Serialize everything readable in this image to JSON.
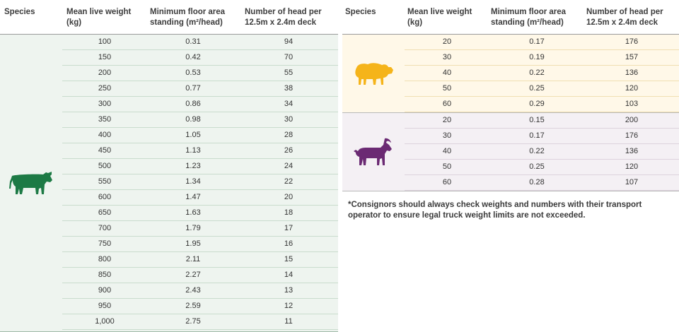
{
  "left": {
    "headers": {
      "species": "Species",
      "weight_1": "Mean live weight",
      "weight_2": "(kg)",
      "area_1": "Minimum floor area",
      "area_2": "standing (m²/head)",
      "head_1": "Number of head per",
      "head_2": "12.5m x 2.4m deck"
    },
    "cattle": {
      "icon": "cattle-icon",
      "color": "#1d7a45",
      "rows": [
        [
          "100",
          "0.31",
          "94"
        ],
        [
          "150",
          "0.42",
          "70"
        ],
        [
          "200",
          "0.53",
          "55"
        ],
        [
          "250",
          "0.77",
          "38"
        ],
        [
          "300",
          "0.86",
          "34"
        ],
        [
          "350",
          "0.98",
          "30"
        ],
        [
          "400",
          "1.05",
          "28"
        ],
        [
          "450",
          "1.13",
          "26"
        ],
        [
          "500",
          "1.23",
          "24"
        ],
        [
          "550",
          "1.34",
          "22"
        ],
        [
          "600",
          "1.47",
          "20"
        ],
        [
          "650",
          "1.63",
          "18"
        ],
        [
          "700",
          "1.79",
          "17"
        ],
        [
          "750",
          "1.95",
          "16"
        ],
        [
          "800",
          "2.11",
          "15"
        ],
        [
          "850",
          "2.27",
          "14"
        ],
        [
          "900",
          "2.43",
          "13"
        ],
        [
          "950",
          "2.59",
          "12"
        ],
        [
          "1,000",
          "2.75",
          "11"
        ]
      ]
    }
  },
  "right": {
    "headers": {
      "species": "Species",
      "weight_1": "Mean live weight",
      "weight_2": "(kg)",
      "area_1": "Minimum floor area",
      "area_2": "standing (m²/head)",
      "head_1": "Number of head per",
      "head_2": "12.5m x 2.4m deck"
    },
    "sheep": {
      "icon": "sheep-icon",
      "color": "#f5b41a",
      "rows": [
        [
          "20",
          "0.17",
          "176"
        ],
        [
          "30",
          "0.19",
          "157"
        ],
        [
          "40",
          "0.22",
          "136"
        ],
        [
          "50",
          "0.25",
          "120"
        ],
        [
          "60",
          "0.29",
          "103"
        ]
      ]
    },
    "goat": {
      "icon": "goat-icon",
      "color": "#6b2a73",
      "rows": [
        [
          "20",
          "0.15",
          "200"
        ],
        [
          "30",
          "0.17",
          "176"
        ],
        [
          "40",
          "0.22",
          "136"
        ],
        [
          "50",
          "0.25",
          "120"
        ],
        [
          "60",
          "0.28",
          "107"
        ]
      ]
    },
    "note": "*Consignors should always check weights and numbers with their transport operator to ensure legal truck weight limits are not exceeded."
  }
}
